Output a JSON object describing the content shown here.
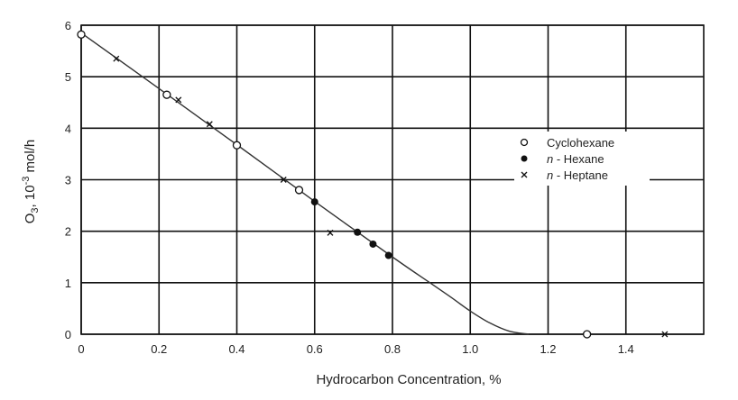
{
  "chart_data": {
    "type": "scatter",
    "title": "",
    "xlabel": "Hydrocarbon Concentration, %",
    "ylabel": "O3, 10-3 mol/h",
    "ylabel_parts": {
      "main": "O",
      "sub": "3",
      "rest": ", 10",
      "sup": "-3",
      "unit": " mol/h"
    },
    "xlim": [
      0,
      1.6
    ],
    "ylim": [
      0,
      6
    ],
    "xticks": [
      0,
      0.2,
      0.4,
      0.6,
      0.8,
      1.0,
      1.2,
      1.4
    ],
    "xtick_labels": [
      "0",
      "0.2",
      "0.4",
      "0.6",
      "0.8",
      "1.0",
      "1.2",
      "1.4"
    ],
    "yticks": [
      0,
      1,
      2,
      3,
      4,
      5,
      6
    ],
    "ytick_labels": [
      "0",
      "1",
      "2",
      "3",
      "4",
      "5",
      "6"
    ],
    "grid": true,
    "legend_position": "right",
    "series": [
      {
        "name": "Cyclohexane",
        "legend_label": "Cyclohexane",
        "marker": "open-circle",
        "points": [
          [
            0,
            5.82
          ],
          [
            0.22,
            4.65
          ],
          [
            0.4,
            3.67
          ],
          [
            0.56,
            2.8
          ],
          [
            1.3,
            0
          ]
        ]
      },
      {
        "name": "n - Hexane",
        "legend_italic": "n",
        "legend_label": " - Hexane",
        "marker": "filled-circle",
        "points": [
          [
            0.6,
            2.57
          ],
          [
            0.71,
            1.98
          ],
          [
            0.75,
            1.75
          ],
          [
            0.79,
            1.53
          ]
        ]
      },
      {
        "name": "n - Heptane",
        "legend_italic": "n",
        "legend_label": " - Heptane",
        "marker": "x",
        "points": [
          [
            0.09,
            5.35
          ],
          [
            0.25,
            4.55
          ],
          [
            0.33,
            4.08
          ],
          [
            0.52,
            3.0
          ],
          [
            0.64,
            1.97
          ],
          [
            1.5,
            0
          ]
        ]
      }
    ],
    "curve": [
      [
        0,
        5.85
      ],
      [
        0.2,
        4.77
      ],
      [
        0.4,
        3.68
      ],
      [
        0.6,
        2.58
      ],
      [
        0.8,
        1.5
      ],
      [
        0.9,
        0.98
      ],
      [
        0.95,
        0.72
      ],
      [
        1.0,
        0.45
      ],
      [
        1.05,
        0.22
      ],
      [
        1.1,
        0.06
      ],
      [
        1.15,
        0
      ]
    ],
    "colors": {
      "ink": "#111111",
      "curve": "#333333",
      "background": "#ffffff"
    }
  }
}
